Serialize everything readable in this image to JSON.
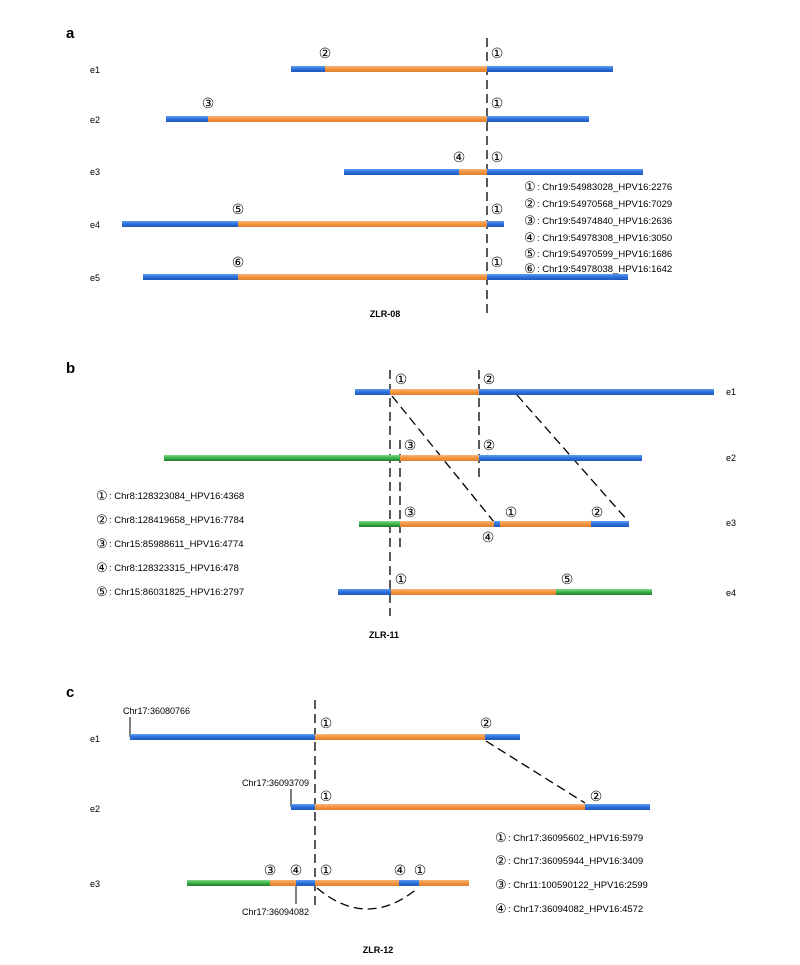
{
  "colors": {
    "host_blue": "#2e6fd9",
    "hpv_orange": "#f2933e",
    "other_green": "#3cb34a"
  },
  "panel_a": {
    "letter": "a",
    "title": "ZLR-08",
    "rows": [
      "e1",
      "e2",
      "e3",
      "e4",
      "e5"
    ],
    "markers": {
      "e1": [
        "②",
        "①"
      ],
      "e2": [
        "③",
        "①"
      ],
      "e3": [
        "④",
        "①"
      ],
      "e4": [
        "⑤",
        "①"
      ],
      "e5": [
        "⑥",
        "①"
      ]
    },
    "legend": [
      {
        "mark": "①",
        "text": ": Chr19:54983028_HPV16:2276"
      },
      {
        "mark": "②",
        "text": ": Chr19:54970568_HPV16:7029"
      },
      {
        "mark": "③",
        "text": ": Chr19:54974840_HPV16:2636"
      },
      {
        "mark": "④",
        "text": ": Chr19:54978308_HPV16:3050"
      },
      {
        "mark": "⑤",
        "text": ": Chr19:54970599_HPV16:1686"
      },
      {
        "mark": "⑥",
        "text": ": Chr19:54978038_HPV16:1642"
      }
    ]
  },
  "panel_b": {
    "letter": "b",
    "title": "ZLR-11",
    "rows": [
      "e1",
      "e2",
      "e3",
      "e4"
    ],
    "markers": {
      "e1": [
        "①",
        "②"
      ],
      "e2": [
        "③",
        "②"
      ],
      "e3": [
        "③",
        "①",
        "②",
        "④"
      ],
      "e4": [
        "①",
        "⑤"
      ]
    },
    "legend": [
      {
        "mark": "①",
        "text": ": Chr8:128323084_HPV16:4368"
      },
      {
        "mark": "②",
        "text": ": Chr8:128419658_HPV16:7784"
      },
      {
        "mark": "③",
        "text": ": Chr15:85988611_HPV16:4774"
      },
      {
        "mark": "④",
        "text": ": Chr8:128323315_HPV16:478"
      },
      {
        "mark": "⑤",
        "text": ": Chr15:86031825_HPV16:2797"
      }
    ]
  },
  "panel_c": {
    "letter": "c",
    "title": "ZLR-12",
    "rows": [
      "e1",
      "e2",
      "e3"
    ],
    "markers": {
      "e1": [
        "①",
        "②"
      ],
      "e2": [
        "①",
        "②"
      ],
      "e3": [
        "③",
        "④",
        "①",
        "④",
        "①"
      ]
    },
    "coords": [
      "Chr17:36080766",
      "Chr17:36093709",
      "Chr17:36094082"
    ],
    "legend": [
      {
        "mark": "①",
        "text": ": Chr17:36095602_HPV16:5979"
      },
      {
        "mark": "②",
        "text": ": Chr17:36095944_HPV16:3409"
      },
      {
        "mark": "③",
        "text": ": Chr11:100590122_HPV16:2599"
      },
      {
        "mark": "④",
        "text": ": Chr17:36094082_HPV16:4572"
      }
    ]
  }
}
